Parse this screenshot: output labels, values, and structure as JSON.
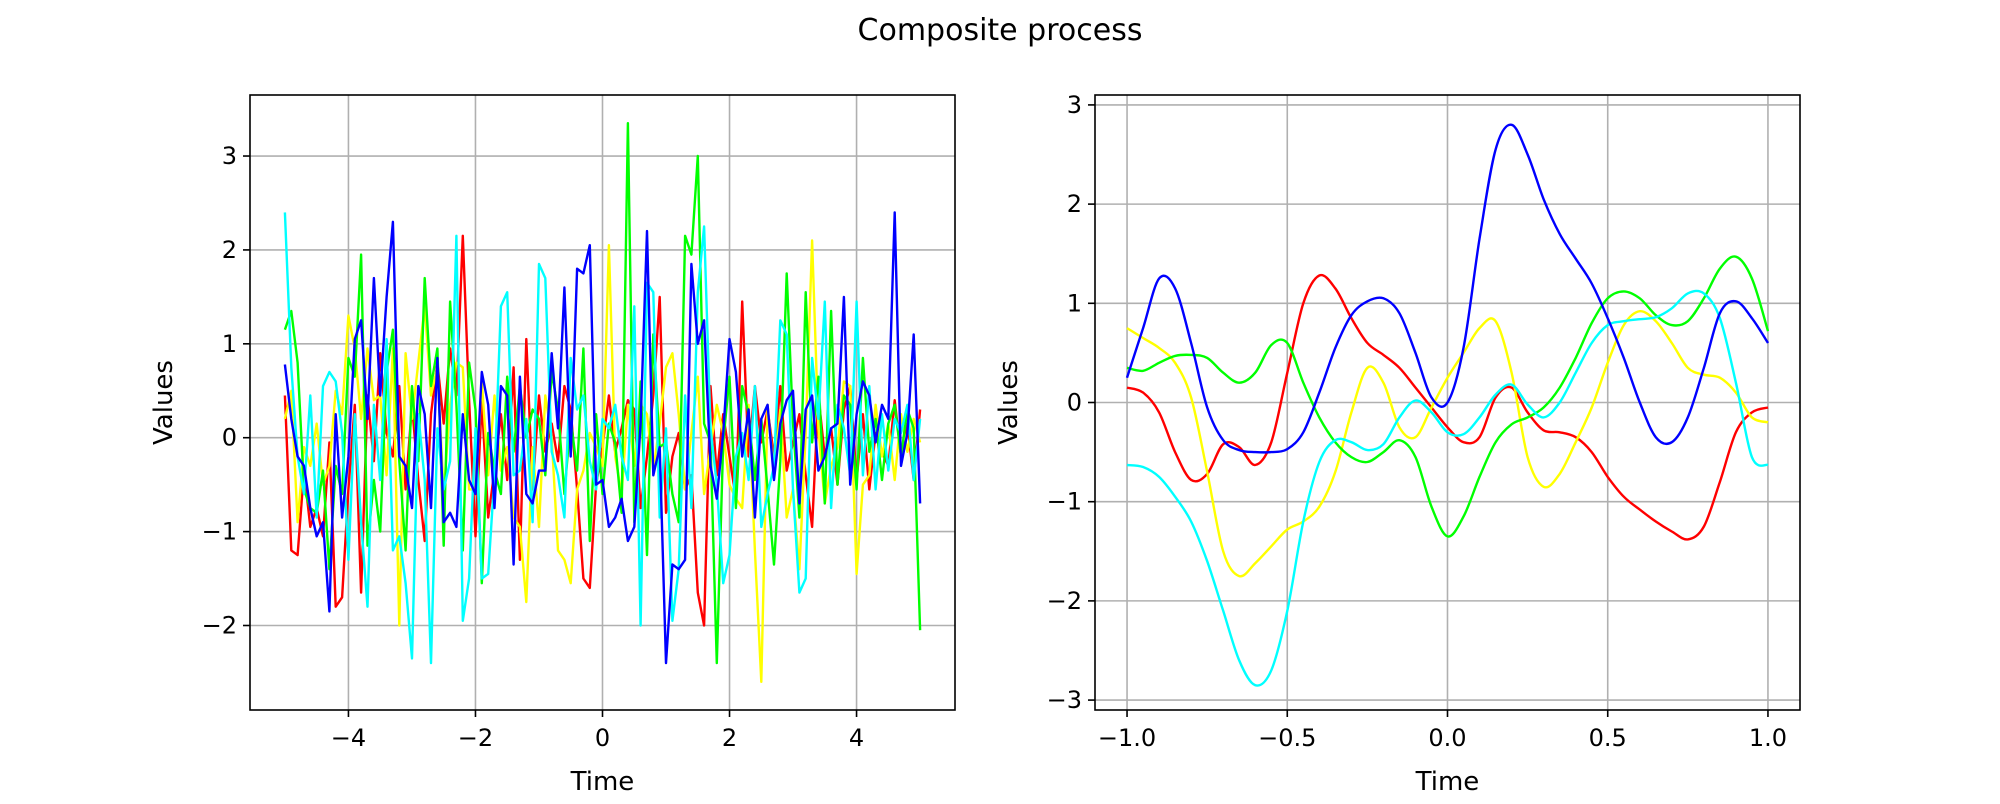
{
  "figure": {
    "title": "Composite process"
  },
  "colors": {
    "red": "#ff0000",
    "yellow": "#ffff00",
    "green": "#00ff00",
    "cyan": "#00ffff",
    "blue": "#0000ff",
    "grid": "#b0b0b0"
  },
  "chart_data": [
    {
      "type": "line",
      "xlabel": "Time",
      "ylabel": "Values",
      "xlim": [
        -5.55,
        5.55
      ],
      "ylim": [
        -2.9,
        3.65
      ],
      "xticks": [
        -4,
        -2,
        0,
        2,
        4
      ],
      "yticks": [
        -2,
        -1,
        0,
        1,
        2,
        3
      ],
      "grid": true,
      "x_range": [
        -5,
        5
      ],
      "n_points": 101,
      "series": [
        {
          "color": "red",
          "values": [
            0.45,
            -1.2,
            -1.25,
            -0.35,
            -0.95,
            -0.75,
            -1.05,
            -0.05,
            -1.8,
            -1.7,
            -0.55,
            0.35,
            -1.65,
            0.45,
            -0.25,
            0.9,
            0.05,
            -0.2,
            0.55,
            -0.55,
            0.35,
            -0.45,
            -1.1,
            0.25,
            0.8,
            0.15,
            0.95,
            0.45,
            2.15,
            0.4,
            -1.05,
            0.4,
            -0.85,
            -0.35,
            0.25,
            -0.45,
            0.75,
            -1.3,
            1.05,
            -0.55,
            0.45,
            -0.15,
            0.15,
            -0.25,
            0.55,
            0.3,
            -0.55,
            -1.5,
            -1.6,
            -0.5,
            -0.1,
            0.45,
            -0.15,
            0.1,
            0.4,
            0.3,
            -0.75,
            -0.2,
            0.45,
            1.5,
            -0.8,
            -0.2,
            0.05,
            -0.55,
            -0.4,
            -1.65,
            -2.0,
            0.55,
            -0.4,
            0.25,
            -0.2,
            -0.65,
            1.45,
            -0.2,
            0.55,
            -0.05,
            0.3,
            -0.2,
            0.55,
            -0.35,
            -0.05,
            0.25,
            -0.4,
            -0.95,
            0.45,
            -0.2,
            0.1,
            -0.5,
            0.3,
            0.55,
            -0.45,
            0.25,
            -0.55,
            0.05,
            -0.15,
            -0.3,
            0.4,
            -0.2,
            0.15,
            -0.45,
            0.3
          ]
        },
        {
          "color": "yellow",
          "values": [
            0.2,
            0.5,
            -0.9,
            -0.1,
            -0.3,
            0.15,
            -0.5,
            -0.3,
            0.5,
            0.25,
            1.3,
            0.95,
            0.2,
            0.95,
            0.4,
            0.45,
            -0.4,
            0.95,
            -2.0,
            0.9,
            0.2,
            0.8,
            1.4,
            0.45,
            0.75,
            -0.6,
            0.35,
            0.8,
            0.75,
            -0.55,
            -0.55,
            0.6,
            -0.4,
            0.45,
            -0.35,
            -0.1,
            -0.85,
            -0.95,
            -1.75,
            -0.1,
            -0.95,
            0.45,
            0.0,
            -1.2,
            -1.3,
            -1.55,
            -0.55,
            -0.35,
            0.05,
            -0.1,
            -0.3,
            2.05,
            -0.2,
            -0.6,
            0.35,
            -0.3,
            0.35,
            0.25,
            -0.35,
            0.15,
            0.75,
            0.9,
            0.25,
            -0.55,
            0.05,
            0.65,
            -0.6,
            -0.1,
            0.35,
            0.05,
            -0.5,
            -0.65,
            -0.75,
            0.35,
            -1.2,
            -2.6,
            0.35,
            -0.4,
            0.3,
            -0.85,
            -0.55,
            -1.4,
            0.05,
            2.1,
            0.1,
            -0.7,
            -0.3,
            -0.1,
            0.6,
            0.55,
            -1.45,
            -0.5,
            -0.4,
            0.35,
            -0.2,
            0.15,
            -0.45,
            0.25,
            -0.15,
            0.2,
            -0.05
          ]
        },
        {
          "color": "green",
          "values": [
            1.15,
            1.35,
            0.8,
            -0.55,
            -0.75,
            -0.8,
            -0.35,
            -1.4,
            -0.3,
            -0.6,
            0.85,
            0.65,
            1.95,
            -1.15,
            -0.45,
            -1.0,
            0.7,
            1.15,
            -0.25,
            -1.2,
            0.55,
            -0.25,
            1.7,
            0.55,
            0.95,
            -1.15,
            1.45,
            0.35,
            -1.2,
            0.8,
            0.3,
            -1.55,
            0.05,
            -0.35,
            -0.6,
            0.65,
            -0.15,
            0.55,
            0.0,
            0.3,
            0.2,
            -0.4,
            0.7,
            0.3,
            -0.6,
            0.2,
            -0.35,
            0.95,
            -1.1,
            0.25,
            -0.6,
            0.15,
            -0.05,
            -0.8,
            3.35,
            -0.9,
            0.6,
            -1.25,
            1.1,
            -0.1,
            -0.05,
            -0.6,
            -0.9,
            2.15,
            1.95,
            3.0,
            0.15,
            -0.05,
            -2.4,
            -0.05,
            0.65,
            -0.75,
            0.55,
            0.25,
            -0.45,
            0.2,
            -0.55,
            -1.35,
            -0.25,
            1.75,
            0.15,
            -0.85,
            1.55,
            -0.05,
            0.65,
            -0.7,
            1.35,
            -0.5,
            0.45,
            0.35,
            -0.55,
            0.85,
            -0.15,
            0.2,
            -0.45,
            0.15,
            0.35,
            -0.2,
            0.3,
            0.1,
            -2.05
          ]
        },
        {
          "color": "cyan",
          "values": [
            2.4,
            0.75,
            -0.2,
            -0.6,
            0.45,
            -0.85,
            0.55,
            0.7,
            0.6,
            0.05,
            -1.3,
            0.25,
            -0.9,
            -1.8,
            0.35,
            -0.45,
            1.05,
            -1.2,
            -1.05,
            -1.55,
            -2.35,
            0.25,
            -0.45,
            -2.4,
            0.1,
            -0.55,
            -0.25,
            2.15,
            -1.95,
            -1.5,
            0.1,
            -1.5,
            -1.45,
            -0.4,
            1.4,
            1.55,
            -0.4,
            -0.35,
            0.2,
            -0.9,
            1.85,
            1.7,
            -0.15,
            -0.4,
            -0.85,
            0.85,
            0.3,
            0.45,
            -0.25,
            -0.55,
            0.2,
            0.1,
            0.35,
            -0.2,
            -0.45,
            1.4,
            -2.0,
            1.65,
            1.55,
            -0.85,
            0.1,
            -1.95,
            -1.4,
            0.45,
            -0.75,
            1.55,
            2.25,
            0.1,
            -0.5,
            -1.55,
            -1.25,
            -0.2,
            0.05,
            -0.45,
            0.55,
            -0.95,
            -0.6,
            -0.3,
            1.25,
            1.1,
            -0.55,
            -1.65,
            -1.5,
            0.85,
            0.2,
            1.45,
            -0.75,
            0.35,
            0.1,
            -0.4,
            1.45,
            -0.4,
            0.55,
            -0.55,
            0.25,
            -0.35,
            0.2,
            0.05,
            0.35,
            -0.45,
            0.2
          ]
        },
        {
          "color": "blue",
          "values": [
            0.78,
            0.2,
            -0.2,
            -0.3,
            -0.75,
            -1.05,
            -0.9,
            -1.85,
            0.25,
            -0.85,
            -0.2,
            1.05,
            1.25,
            0.2,
            1.7,
            0.45,
            1.5,
            2.3,
            -0.2,
            -0.3,
            -0.75,
            0.55,
            0.25,
            -0.75,
            0.85,
            -0.9,
            -0.8,
            -0.95,
            0.25,
            -0.45,
            -0.6,
            0.7,
            0.35,
            -0.75,
            0.55,
            0.45,
            -1.35,
            0.65,
            -0.6,
            -0.7,
            -0.35,
            -0.35,
            0.9,
            0.1,
            1.6,
            -0.2,
            1.8,
            1.75,
            2.05,
            -0.5,
            -0.45,
            -0.95,
            -0.85,
            -0.65,
            -1.1,
            -0.95,
            0.15,
            2.2,
            -0.4,
            -0.1,
            -2.4,
            -1.35,
            -1.4,
            -1.3,
            1.85,
            1.0,
            1.25,
            -0.3,
            -0.65,
            0.05,
            1.05,
            0.7,
            -0.2,
            0.3,
            -0.85,
            0.2,
            0.35,
            -0.45,
            0.15,
            0.4,
            0.5,
            -0.7,
            0.3,
            0.45,
            -0.35,
            -0.2,
            0.1,
            0.15,
            1.5,
            -0.5,
            0.25,
            0.6,
            0.45,
            -0.05,
            0.35,
            0.2,
            2.4,
            -0.3,
            0.05,
            1.1,
            -0.7
          ]
        }
      ]
    },
    {
      "type": "line",
      "xlabel": "Time",
      "ylabel": "Values",
      "xlim": [
        -1.1,
        1.1
      ],
      "ylim": [
        -3.1,
        3.1
      ],
      "xticks": [
        -1.0,
        -0.5,
        0.0,
        0.5,
        1.0
      ],
      "yticks": [
        -3,
        -2,
        -1,
        0,
        1,
        2,
        3
      ],
      "grid": true,
      "series": [
        {
          "color": "red",
          "x": [
            -1.0,
            -0.95,
            -0.9,
            -0.85,
            -0.8,
            -0.75,
            -0.7,
            -0.65,
            -0.6,
            -0.55,
            -0.5,
            -0.45,
            -0.4,
            -0.35,
            -0.3,
            -0.25,
            -0.2,
            -0.15,
            -0.1,
            -0.05,
            0.0,
            0.05,
            0.1,
            0.15,
            0.2,
            0.25,
            0.3,
            0.35,
            0.4,
            0.45,
            0.5,
            0.55,
            0.6,
            0.65,
            0.7,
            0.75,
            0.8,
            0.85,
            0.9,
            0.95,
            1.0
          ],
          "values": [
            0.15,
            0.1,
            -0.1,
            -0.5,
            -0.78,
            -0.72,
            -0.42,
            -0.45,
            -0.63,
            -0.4,
            0.3,
            1.0,
            1.28,
            1.15,
            0.85,
            0.6,
            0.48,
            0.35,
            0.15,
            -0.05,
            -0.25,
            -0.4,
            -0.35,
            0.05,
            0.15,
            -0.1,
            -0.28,
            -0.3,
            -0.35,
            -0.5,
            -0.75,
            -0.95,
            -1.08,
            -1.2,
            -1.3,
            -1.38,
            -1.25,
            -0.8,
            -0.3,
            -0.1,
            -0.05
          ]
        },
        {
          "color": "yellow",
          "x": [
            -1.0,
            -0.95,
            -0.9,
            -0.85,
            -0.8,
            -0.75,
            -0.7,
            -0.65,
            -0.6,
            -0.55,
            -0.5,
            -0.45,
            -0.4,
            -0.35,
            -0.3,
            -0.25,
            -0.2,
            -0.15,
            -0.1,
            -0.05,
            0.0,
            0.05,
            0.1,
            0.15,
            0.2,
            0.25,
            0.3,
            0.35,
            0.4,
            0.45,
            0.5,
            0.55,
            0.6,
            0.65,
            0.7,
            0.75,
            0.8,
            0.85,
            0.9,
            0.95,
            1.0
          ],
          "values": [
            0.75,
            0.65,
            0.55,
            0.4,
            0.05,
            -0.7,
            -1.5,
            -1.75,
            -1.62,
            -1.45,
            -1.28,
            -1.2,
            -1.05,
            -0.7,
            -0.1,
            0.35,
            0.2,
            -0.25,
            -0.35,
            -0.05,
            0.25,
            0.5,
            0.75,
            0.82,
            0.3,
            -0.55,
            -0.85,
            -0.72,
            -0.4,
            -0.05,
            0.4,
            0.78,
            0.92,
            0.82,
            0.6,
            0.35,
            0.28,
            0.25,
            0.1,
            -0.15,
            -0.2
          ]
        },
        {
          "color": "green",
          "x": [
            -1.0,
            -0.95,
            -0.9,
            -0.85,
            -0.8,
            -0.75,
            -0.7,
            -0.65,
            -0.6,
            -0.55,
            -0.5,
            -0.45,
            -0.4,
            -0.35,
            -0.3,
            -0.25,
            -0.2,
            -0.15,
            -0.1,
            -0.05,
            0.0,
            0.05,
            0.1,
            0.15,
            0.2,
            0.25,
            0.3,
            0.35,
            0.4,
            0.45,
            0.5,
            0.55,
            0.6,
            0.65,
            0.7,
            0.75,
            0.8,
            0.85,
            0.9,
            0.95,
            1.0
          ],
          "values": [
            0.35,
            0.32,
            0.4,
            0.47,
            0.48,
            0.45,
            0.3,
            0.2,
            0.3,
            0.58,
            0.6,
            0.2,
            -0.15,
            -0.4,
            -0.55,
            -0.6,
            -0.5,
            -0.38,
            -0.55,
            -1.05,
            -1.35,
            -1.15,
            -0.75,
            -0.4,
            -0.22,
            -0.15,
            -0.05,
            0.15,
            0.45,
            0.8,
            1.05,
            1.12,
            1.05,
            0.88,
            0.78,
            0.82,
            1.05,
            1.35,
            1.47,
            1.25,
            0.72
          ]
        },
        {
          "color": "cyan",
          "x": [
            -1.0,
            -0.95,
            -0.9,
            -0.85,
            -0.8,
            -0.75,
            -0.7,
            -0.65,
            -0.6,
            -0.55,
            -0.5,
            -0.45,
            -0.4,
            -0.35,
            -0.3,
            -0.25,
            -0.2,
            -0.15,
            -0.1,
            -0.05,
            0.0,
            0.05,
            0.1,
            0.15,
            0.2,
            0.25,
            0.3,
            0.35,
            0.4,
            0.45,
            0.5,
            0.55,
            0.6,
            0.65,
            0.7,
            0.75,
            0.8,
            0.85,
            0.9,
            0.95,
            1.0
          ],
          "values": [
            -0.63,
            -0.65,
            -0.75,
            -0.95,
            -1.2,
            -1.6,
            -2.1,
            -2.6,
            -2.85,
            -2.7,
            -2.1,
            -1.2,
            -0.6,
            -0.38,
            -0.4,
            -0.48,
            -0.42,
            -0.15,
            0.02,
            -0.1,
            -0.3,
            -0.32,
            -0.15,
            0.08,
            0.18,
            -0.02,
            -0.15,
            0.0,
            0.3,
            0.6,
            0.78,
            0.82,
            0.84,
            0.86,
            0.95,
            1.1,
            1.1,
            0.85,
            0.2,
            -0.55,
            -0.63
          ]
        },
        {
          "color": "blue",
          "x": [
            -1.0,
            -0.95,
            -0.9,
            -0.85,
            -0.8,
            -0.75,
            -0.7,
            -0.65,
            -0.6,
            -0.55,
            -0.5,
            -0.45,
            -0.4,
            -0.35,
            -0.3,
            -0.25,
            -0.2,
            -0.15,
            -0.1,
            -0.05,
            0.0,
            0.05,
            0.1,
            0.15,
            0.2,
            0.25,
            0.3,
            0.35,
            0.4,
            0.45,
            0.5,
            0.55,
            0.6,
            0.65,
            0.7,
            0.75,
            0.8,
            0.85,
            0.9,
            0.95,
            1.0
          ],
          "values": [
            0.25,
            0.75,
            1.25,
            1.15,
            0.6,
            -0.05,
            -0.38,
            -0.48,
            -0.5,
            -0.5,
            -0.47,
            -0.3,
            0.1,
            0.55,
            0.88,
            1.02,
            1.05,
            0.9,
            0.5,
            0.05,
            0.0,
            0.55,
            1.65,
            2.55,
            2.8,
            2.5,
            2.05,
            1.7,
            1.45,
            1.2,
            0.85,
            0.45,
            0.0,
            -0.35,
            -0.4,
            -0.15,
            0.35,
            0.9,
            1.02,
            0.85,
            0.6
          ]
        }
      ]
    }
  ]
}
